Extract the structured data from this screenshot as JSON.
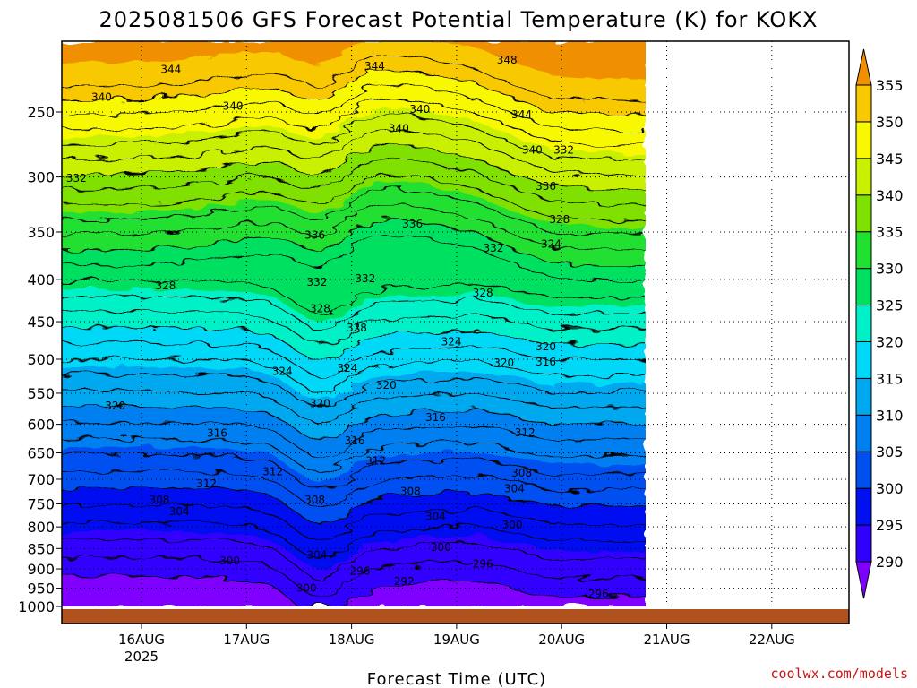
{
  "title": "2025081506 GFS Forecast Potential Temperature (K) for KOKX",
  "credit": "coolwx.com/models",
  "chart_data": {
    "type": "contour",
    "title": "2025081506 GFS Forecast Potential Temperature (K) for KOKX",
    "xlabel": "Forecast Time (UTC)",
    "ylabel": "",
    "y_axis": {
      "scale": "log",
      "reversed": true,
      "ylim": [
        1000,
        200
      ],
      "ticks": [
        250,
        300,
        350,
        400,
        450,
        500,
        550,
        600,
        650,
        700,
        750,
        800,
        850,
        900,
        950,
        1000
      ]
    },
    "x_axis": {
      "ticks": [
        {
          "label": "16AUG",
          "sublabel": "2025"
        },
        {
          "label": "17AUG",
          "sublabel": ""
        },
        {
          "label": "18AUG",
          "sublabel": ""
        },
        {
          "label": "19AUG",
          "sublabel": ""
        },
        {
          "label": "20AUG",
          "sublabel": ""
        },
        {
          "label": "21AUG",
          "sublabel": ""
        },
        {
          "label": "22AUG",
          "sublabel": ""
        }
      ]
    },
    "grid": true,
    "colorbar": {
      "levels": [
        290,
        295,
        300,
        305,
        310,
        315,
        320,
        325,
        330,
        335,
        340,
        345,
        350,
        355
      ],
      "colors": [
        "#8000ff",
        "#3000ff",
        "#0010f0",
        "#0050f0",
        "#0080f0",
        "#00a8f0",
        "#00d8f8",
        "#00f0c8",
        "#00e060",
        "#20e030",
        "#80e000",
        "#c8f000",
        "#f8f800",
        "#f8c800",
        "#f09000"
      ]
    },
    "contour_labels": [
      {
        "x": 0.28,
        "p": 222,
        "text": "344"
      },
      {
        "x": 2.22,
        "p": 220,
        "text": "344"
      },
      {
        "x": 3.48,
        "p": 216,
        "text": "348"
      },
      {
        "x": -0.38,
        "p": 240,
        "text": "340"
      },
      {
        "x": 0.87,
        "p": 246,
        "text": "340"
      },
      {
        "x": 2.65,
        "p": 248,
        "text": "340"
      },
      {
        "x": 2.45,
        "p": 262,
        "text": "340"
      },
      {
        "x": 3.62,
        "p": 252,
        "text": "344"
      },
      {
        "x": 3.72,
        "p": 278,
        "text": "340"
      },
      {
        "x": 4.02,
        "p": 278,
        "text": "332"
      },
      {
        "x": -0.62,
        "p": 301,
        "text": "332"
      },
      {
        "x": 3.85,
        "p": 308,
        "text": "336"
      },
      {
        "x": 1.65,
        "p": 353,
        "text": "336"
      },
      {
        "x": 2.58,
        "p": 342,
        "text": "336"
      },
      {
        "x": 3.35,
        "p": 366,
        "text": "332"
      },
      {
        "x": 3.98,
        "p": 338,
        "text": "328"
      },
      {
        "x": 3.9,
        "p": 362,
        "text": "324"
      },
      {
        "x": 0.23,
        "p": 407,
        "text": "328"
      },
      {
        "x": 1.67,
        "p": 403,
        "text": "332"
      },
      {
        "x": 2.13,
        "p": 399,
        "text": "332"
      },
      {
        "x": 3.25,
        "p": 415,
        "text": "328"
      },
      {
        "x": 1.7,
        "p": 434,
        "text": "328"
      },
      {
        "x": 2.05,
        "p": 458,
        "text": "328"
      },
      {
        "x": 2.95,
        "p": 476,
        "text": "324"
      },
      {
        "x": 3.85,
        "p": 483,
        "text": "320"
      },
      {
        "x": 1.34,
        "p": 517,
        "text": "324"
      },
      {
        "x": 1.96,
        "p": 513,
        "text": "324"
      },
      {
        "x": 3.45,
        "p": 505,
        "text": "320"
      },
      {
        "x": 3.85,
        "p": 504,
        "text": "316"
      },
      {
        "x": -0.25,
        "p": 570,
        "text": "320"
      },
      {
        "x": 1.7,
        "p": 566,
        "text": "320"
      },
      {
        "x": 2.33,
        "p": 538,
        "text": "320"
      },
      {
        "x": 2.8,
        "p": 589,
        "text": "316"
      },
      {
        "x": 0.72,
        "p": 615,
        "text": "316"
      },
      {
        "x": 2.03,
        "p": 628,
        "text": "316"
      },
      {
        "x": 2.23,
        "p": 665,
        "text": "312"
      },
      {
        "x": 3.65,
        "p": 614,
        "text": "312"
      },
      {
        "x": 1.25,
        "p": 685,
        "text": "312"
      },
      {
        "x": 0.62,
        "p": 709,
        "text": "312"
      },
      {
        "x": 3.62,
        "p": 688,
        "text": "308"
      },
      {
        "x": 3.55,
        "p": 719,
        "text": "304"
      },
      {
        "x": 0.17,
        "p": 742,
        "text": "308"
      },
      {
        "x": 0.36,
        "p": 766,
        "text": "304"
      },
      {
        "x": 1.65,
        "p": 742,
        "text": "308"
      },
      {
        "x": 2.56,
        "p": 724,
        "text": "308"
      },
      {
        "x": 2.8,
        "p": 777,
        "text": "304"
      },
      {
        "x": 3.53,
        "p": 796,
        "text": "300"
      },
      {
        "x": 1.67,
        "p": 866,
        "text": "304"
      },
      {
        "x": 2.85,
        "p": 847,
        "text": "300"
      },
      {
        "x": 0.84,
        "p": 880,
        "text": "300"
      },
      {
        "x": 2.08,
        "p": 905,
        "text": "296"
      },
      {
        "x": 3.25,
        "p": 887,
        "text": "296"
      },
      {
        "x": 2.5,
        "p": 932,
        "text": "292"
      },
      {
        "x": 1.57,
        "p": 950,
        "text": "300"
      },
      {
        "x": 4.35,
        "p": 966,
        "text": "296"
      }
    ]
  }
}
